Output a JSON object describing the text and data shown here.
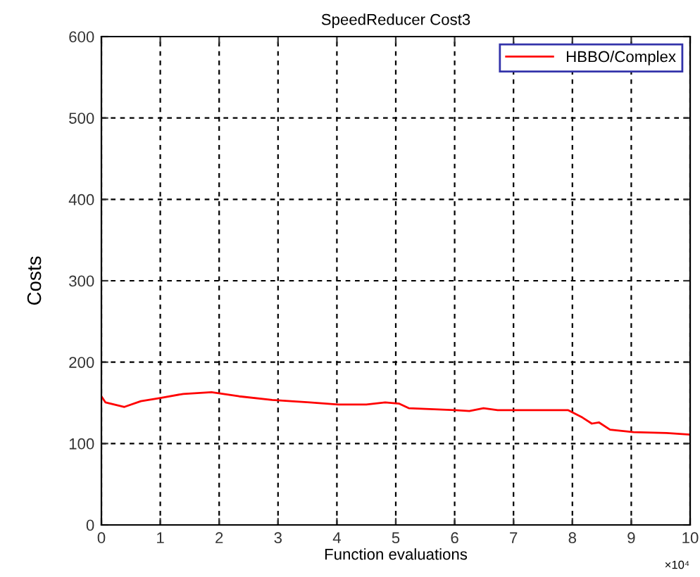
{
  "chart_data": {
    "type": "line",
    "title": "SpeedReducer Cost3",
    "xlabel": "Function evaluations",
    "ylabel": "Costs",
    "annotations": [
      "×10⁴"
    ],
    "xlim": [
      0,
      10
    ],
    "xticks": [
      0,
      1,
      2,
      3,
      4,
      5,
      6,
      7,
      8,
      9,
      10
    ],
    "ylim": [
      0,
      600
    ],
    "yticks": [
      0,
      100,
      200,
      300,
      400,
      500,
      600
    ],
    "grid": true,
    "legend": "top right",
    "line_style": "solid",
    "marker": "none",
    "series": [
      {
        "name": "HBBO/Complex",
        "color": "#ff0000",
        "x": [
          0,
          0.07,
          0.39,
          0.67,
          1.0,
          1.39,
          1.87,
          2.34,
          2.9,
          3.54,
          4.02,
          4.5,
          4.82,
          5.06,
          5.22,
          6.01,
          6.25,
          6.49,
          6.73,
          7.29,
          7.93,
          8.17,
          8.33,
          8.45,
          8.64,
          9.04,
          9.6,
          10
        ],
        "values": [
          158,
          150.5,
          145,
          152,
          156,
          161,
          163,
          158,
          153.5,
          150.5,
          148,
          148,
          150.5,
          149,
          143.5,
          141,
          140,
          143.5,
          141,
          141,
          141,
          132,
          124.5,
          126,
          117,
          114,
          113,
          111
        ]
      }
    ]
  }
}
